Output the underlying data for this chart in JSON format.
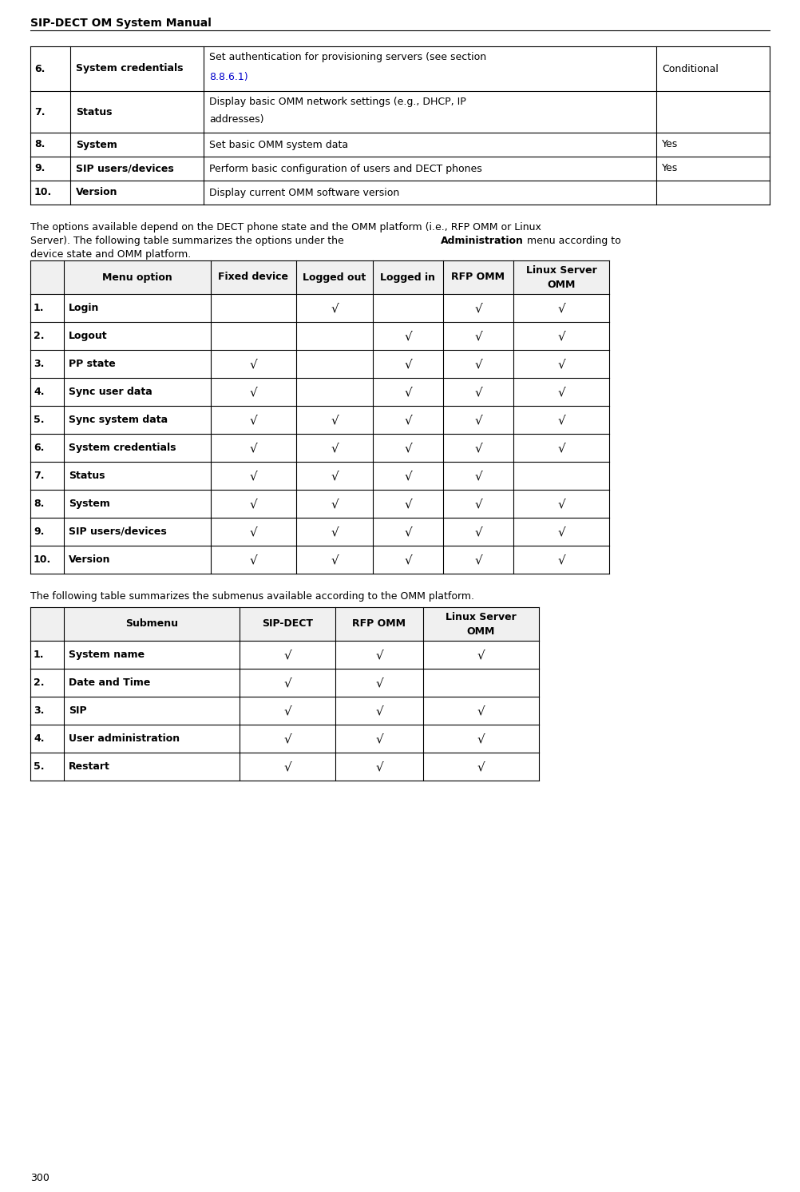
{
  "page_header": "SIP-DECT OM System Manual",
  "page_footer": "300",
  "background_color": "#ffffff",
  "link_color": "#0000cc",
  "check": "√",
  "table1_rows": [
    [
      "6.",
      "System credentials",
      "Set authentication for provisioning servers (see section\n8.8.6.1)",
      "Conditional"
    ],
    [
      "7.",
      "Status",
      "Display basic OMM network settings (e.g., DHCP, IP\naddresses)",
      ""
    ],
    [
      "8.",
      "System",
      "Set basic OMM system data",
      "Yes"
    ],
    [
      "9.",
      "SIP users/devices",
      "Perform basic configuration of users and DECT phones",
      "Yes"
    ],
    [
      "10.",
      "Version",
      "Display current OMM software version",
      ""
    ]
  ],
  "para1_line1": "The options available depend on the DECT phone state and the OMM platform (i.e., RFP OMM or Linux",
  "para1_line2a": "Server). The following table summarizes the options under the ",
  "para1_line2b": "Administration",
  "para1_line2c": " menu according to",
  "para1_line3": "device state and OMM platform.",
  "table2_headers": [
    "",
    "Menu option",
    "Fixed device",
    "Logged out",
    "Logged in",
    "RFP OMM",
    "Linux Server\nOMM"
  ],
  "table2_rows": [
    [
      "1.",
      "Login",
      "",
      "√",
      "",
      "√",
      "√"
    ],
    [
      "2.",
      "Logout",
      "",
      "",
      "√",
      "√",
      "√"
    ],
    [
      "3.",
      "PP state",
      "√",
      "",
      "√",
      "√",
      "√"
    ],
    [
      "4.",
      "Sync user data",
      "√",
      "",
      "√",
      "√",
      "√"
    ],
    [
      "5.",
      "Sync system data",
      "√",
      "√",
      "√",
      "√",
      "√"
    ],
    [
      "6.",
      "System credentials",
      "√",
      "√",
      "√",
      "√",
      "√"
    ],
    [
      "7.",
      "Status",
      "√",
      "√",
      "√",
      "√",
      ""
    ],
    [
      "8.",
      "System",
      "√",
      "√",
      "√",
      "√",
      "√"
    ],
    [
      "9.",
      "SIP users/devices",
      "√",
      "√",
      "√",
      "√",
      "√"
    ],
    [
      "10.",
      "Version",
      "√",
      "√",
      "√",
      "√",
      "√"
    ]
  ],
  "para2": "The following table summarizes the submenus available according to the OMM platform.",
  "table3_headers": [
    "",
    "Submenu",
    "SIP-DECT",
    "RFP OMM",
    "Linux Server\nOMM"
  ],
  "table3_rows": [
    [
      "1.",
      "System name",
      "√",
      "√",
      "√"
    ],
    [
      "2.",
      "Date and Time",
      "√",
      "√",
      ""
    ],
    [
      "3.",
      "SIP",
      "√",
      "√",
      "√"
    ],
    [
      "4.",
      "User administration",
      "√",
      "√",
      "√"
    ],
    [
      "5.",
      "Restart",
      "√",
      "√",
      "√"
    ]
  ]
}
